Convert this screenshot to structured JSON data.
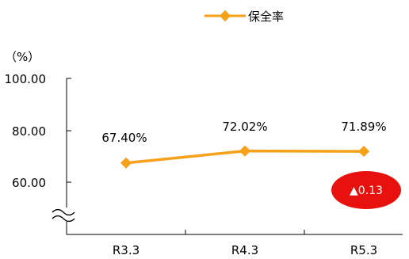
{
  "chart_data": {
    "type": "line",
    "categories": [
      "R3.3",
      "R4.3",
      "R5.3"
    ],
    "series": [
      {
        "name": "保全率",
        "values": [
          67.4,
          72.02,
          71.89
        ],
        "data_labels": [
          "67.40%",
          "72.02%",
          "71.89%"
        ],
        "color": "#F7A11A"
      }
    ],
    "yunit": "（%）",
    "yticks": [
      "100.00",
      "80.00",
      "60.00"
    ],
    "ylim": [
      40,
      100
    ],
    "axis_break": true,
    "grid": false,
    "legend": "top-center",
    "annotation": {
      "text": "▲0.13",
      "color": "#E8110E",
      "text_color": "#ffffff"
    }
  }
}
